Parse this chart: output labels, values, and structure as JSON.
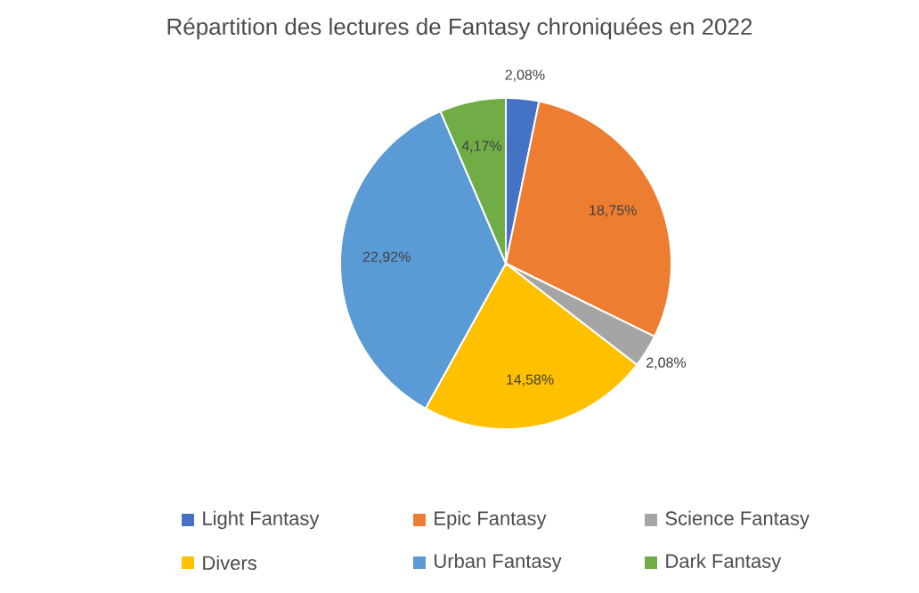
{
  "chart_data": {
    "type": "pie",
    "title": "Répartition des lectures de Fantasy chroniquées en 2022",
    "categories": [
      "Light Fantasy",
      "Epic Fantasy",
      "Science Fantasy",
      "Divers",
      "Urban Fantasy",
      "Dark Fantasy"
    ],
    "values": [
      2.08,
      18.75,
      2.08,
      14.58,
      22.92,
      4.17
    ],
    "value_labels": [
      "2,08%",
      "18,75%",
      "2,08%",
      "14,58%",
      "22,92%",
      "4,17%"
    ],
    "colors": [
      "#4472c4",
      "#ed7d31",
      "#a5a5a5",
      "#ffc000",
      "#5b9bd5",
      "#70ad47"
    ],
    "legend": "bottom"
  }
}
